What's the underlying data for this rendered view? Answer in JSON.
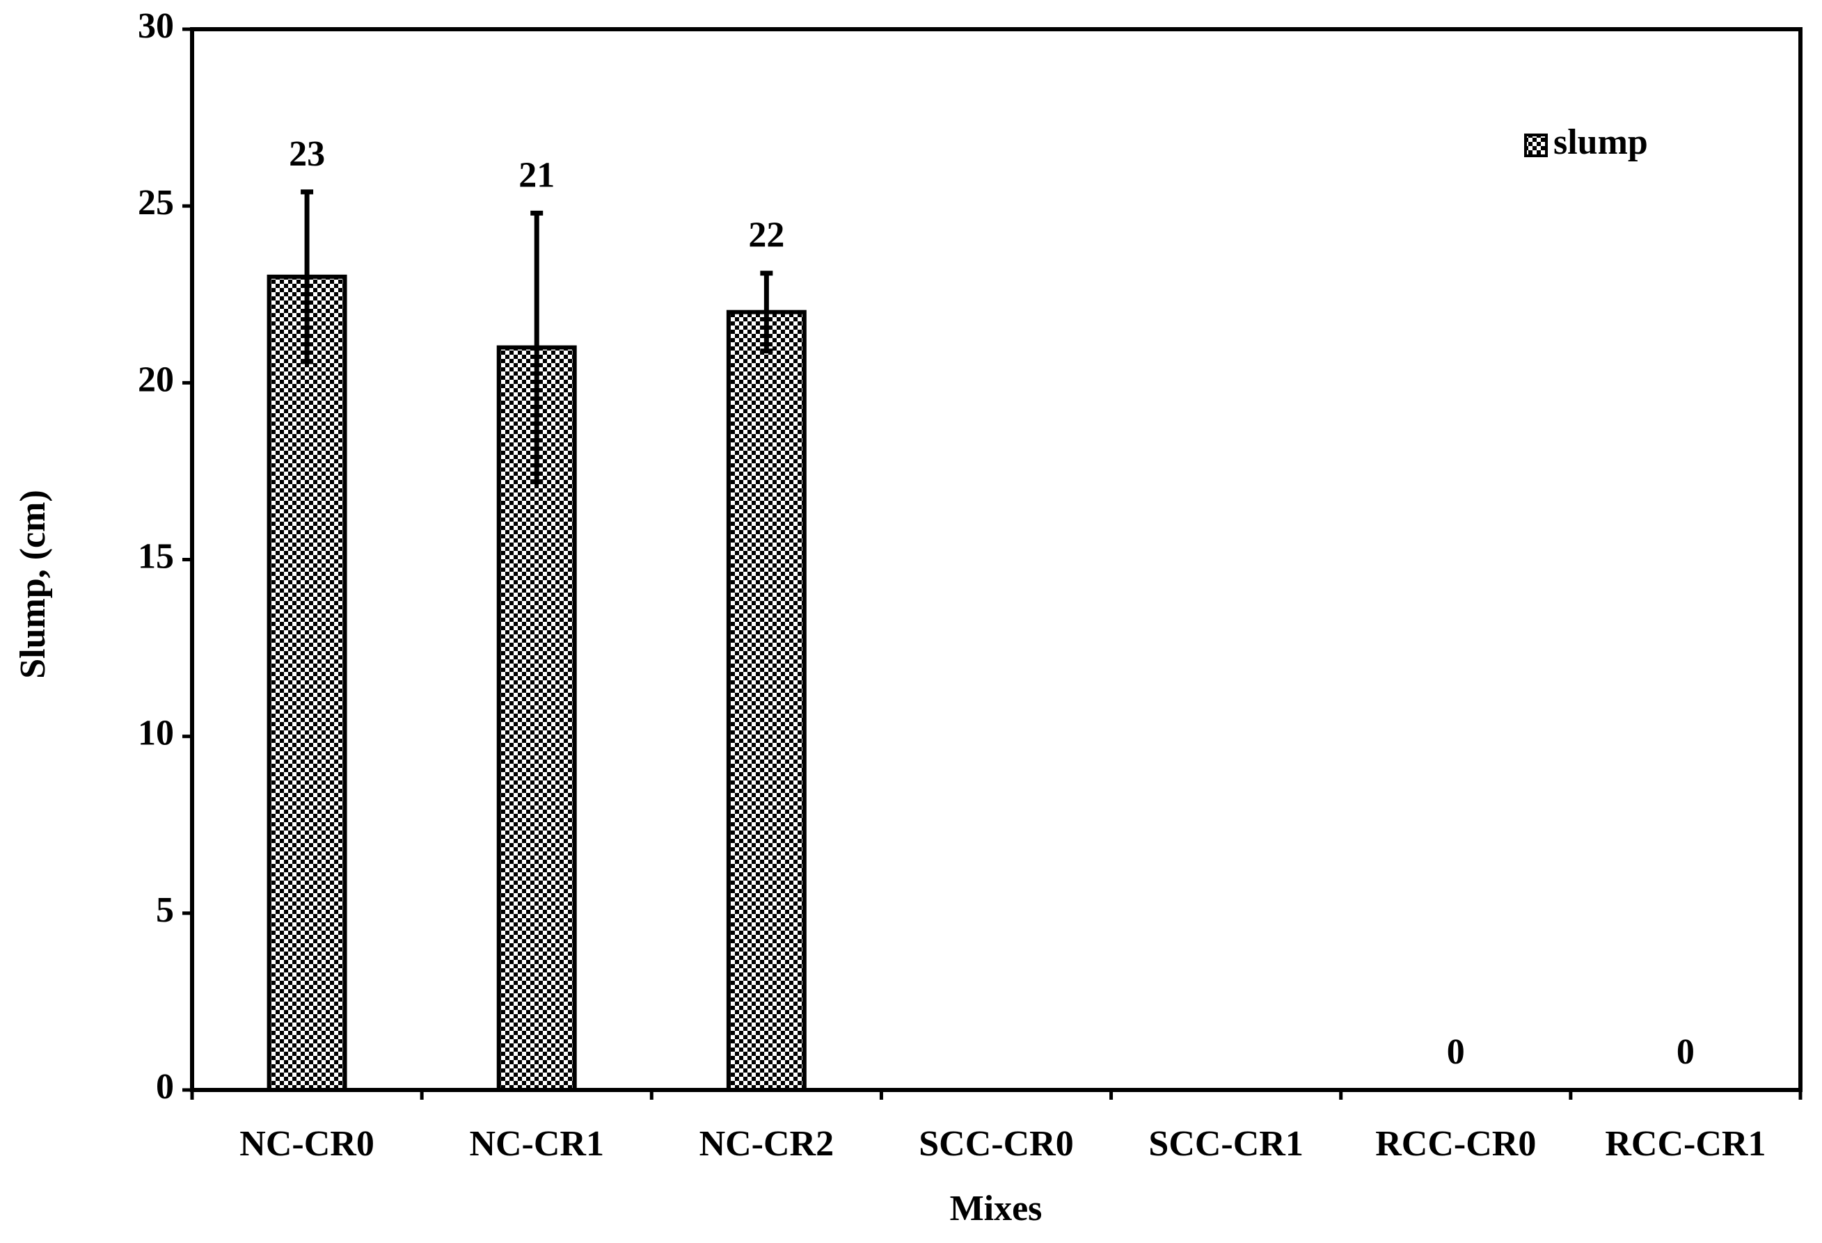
{
  "chart_data": {
    "type": "bar",
    "ylabel": "Slump, (cm)",
    "xlabel": "Mixes",
    "categories": [
      "NC-CR0",
      "NC-CR1",
      "NC-CR2",
      "SCC-CR0",
      "SCC-CR1",
      "RCC-CR0",
      "RCC-CR1"
    ],
    "series": [
      {
        "name": "slump",
        "color": "#000000",
        "values": [
          23,
          21,
          22,
          null,
          null,
          0,
          0
        ],
        "errors": [
          2.4,
          3.8,
          1.1,
          null,
          null,
          null,
          null
        ]
      }
    ],
    "ylim": [
      0,
      30
    ],
    "yticks": [
      0,
      5,
      10,
      15,
      20,
      25,
      30
    ],
    "grid": false,
    "legend": "upper right"
  }
}
